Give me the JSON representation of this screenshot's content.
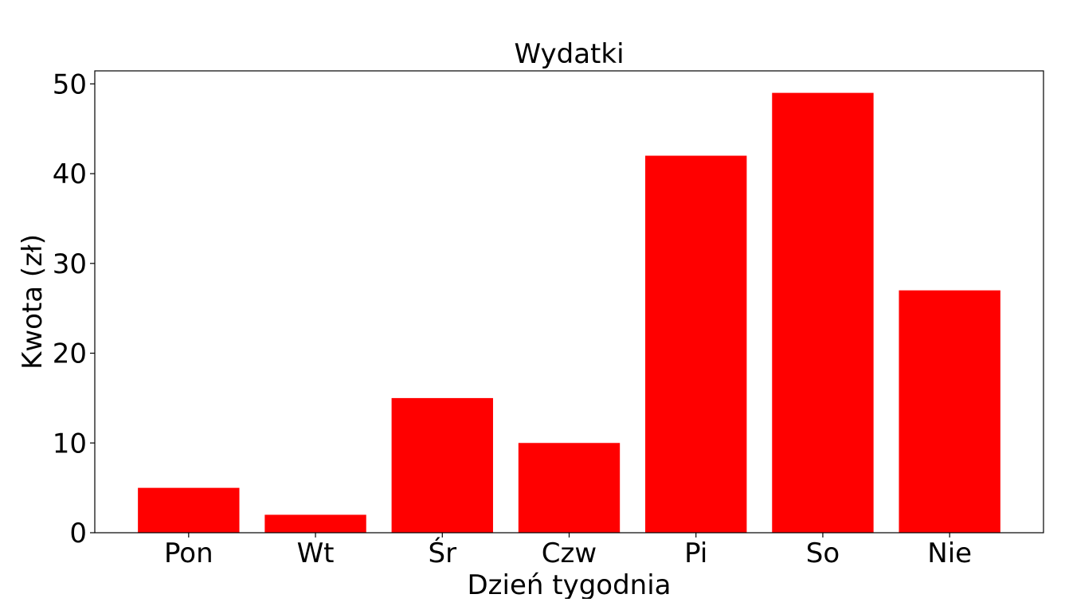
{
  "chart_data": {
    "type": "bar",
    "title": "Wydatki",
    "xlabel": "Dzień tygodnia",
    "ylabel": "Kwota (zł)",
    "categories": [
      "Pon",
      "Wt",
      "Śr",
      "Czw",
      "Pi",
      "So",
      "Nie"
    ],
    "values": [
      5,
      2,
      15,
      10,
      42,
      49,
      27
    ],
    "ylim": [
      0,
      51.45
    ],
    "yticks": [
      0,
      10,
      20,
      30,
      40,
      50
    ],
    "ytick_labels": [
      "0",
      "10",
      "20",
      "30",
      "40",
      "50"
    ],
    "bar_color": "#ff0000",
    "grid": false,
    "legend": "none"
  }
}
